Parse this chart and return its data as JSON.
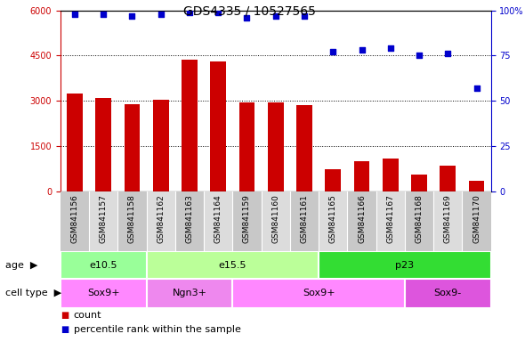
{
  "title": "GDS4335 / 10527565",
  "samples": [
    "GSM841156",
    "GSM841157",
    "GSM841158",
    "GSM841162",
    "GSM841163",
    "GSM841164",
    "GSM841159",
    "GSM841160",
    "GSM841161",
    "GSM841165",
    "GSM841166",
    "GSM841167",
    "GSM841168",
    "GSM841169",
    "GSM841170"
  ],
  "counts": [
    3250,
    3100,
    2900,
    3050,
    4350,
    4300,
    2950,
    2950,
    2850,
    750,
    1000,
    1100,
    550,
    850,
    350
  ],
  "percentile": [
    98,
    98,
    97,
    98,
    99,
    99,
    96,
    97,
    97,
    77,
    78,
    79,
    75,
    76,
    57
  ],
  "ylim_left": [
    0,
    6000
  ],
  "ylim_right": [
    0,
    100
  ],
  "yticks_left": [
    0,
    1500,
    3000,
    4500,
    6000
  ],
  "yticks_right": [
    0,
    25,
    50,
    75,
    100
  ],
  "bar_color": "#cc0000",
  "dot_color": "#0000cc",
  "age_groups": [
    {
      "label": "e10.5",
      "start": 0,
      "end": 2,
      "color": "#99ff99"
    },
    {
      "label": "e15.5",
      "start": 3,
      "end": 8,
      "color": "#bbff99"
    },
    {
      "label": "p23",
      "start": 9,
      "end": 14,
      "color": "#33dd33"
    }
  ],
  "cell_groups": [
    {
      "label": "Sox9+",
      "start": 0,
      "end": 2,
      "color": "#ff88ff"
    },
    {
      "label": "Ngn3+",
      "start": 3,
      "end": 5,
      "color": "#ee88ee"
    },
    {
      "label": "Sox9+",
      "start": 6,
      "end": 11,
      "color": "#ff88ff"
    },
    {
      "label": "Sox9-",
      "start": 12,
      "end": 14,
      "color": "#dd55dd"
    }
  ],
  "legend_count_label": "count",
  "legend_pct_label": "percentile rank within the sample",
  "age_label": "age",
  "cell_type_label": "cell type",
  "title_fontsize": 10,
  "tick_fontsize": 7,
  "annotation_fontsize": 8,
  "label_fontsize": 8
}
